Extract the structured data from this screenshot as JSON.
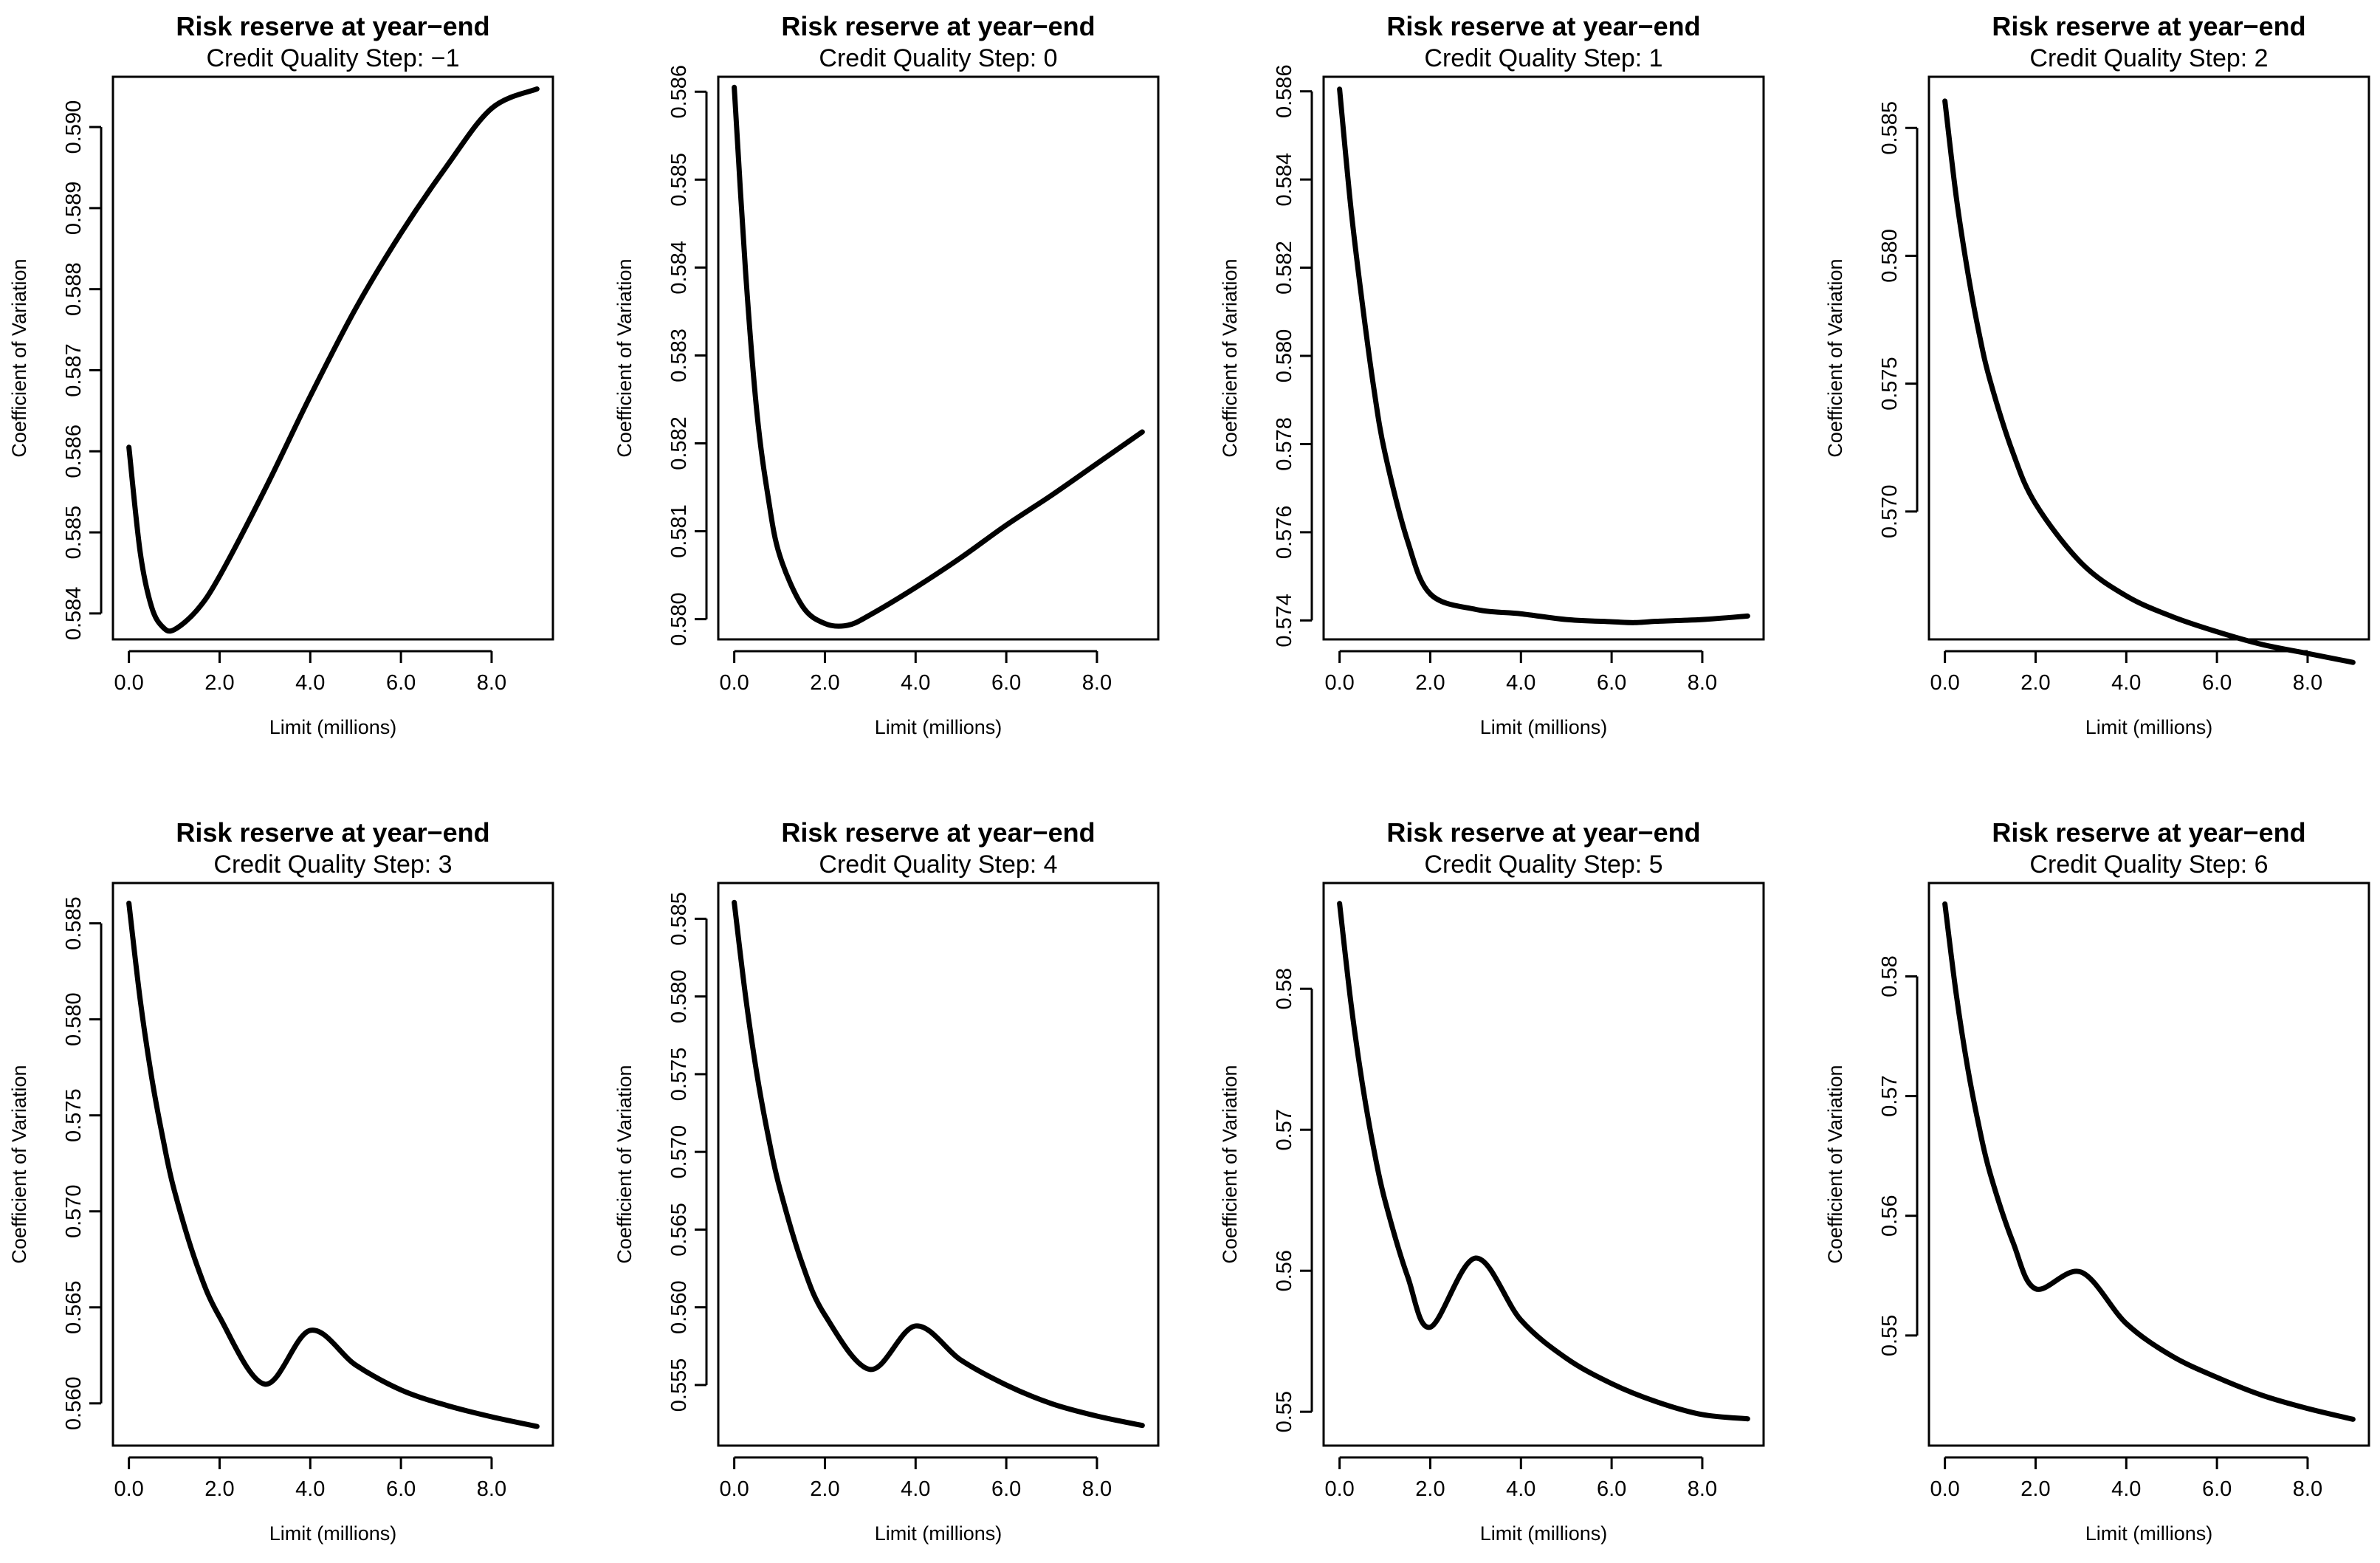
{
  "chart_data": [
    {
      "type": "line",
      "title": "Risk reserve at year−end",
      "subtitle": "Credit Quality Step: −1",
      "xlabel": "Limit (millions)",
      "ylabel": "Coefficient of Variation",
      "xlim": [
        0,
        9
      ],
      "ylim": [
        0.58368,
        0.59062
      ],
      "xticks": [
        "0.0",
        "2.0",
        "4.0",
        "6.0",
        "8.0"
      ],
      "yticks": [
        "0.584",
        "0.585",
        "0.586",
        "0.587",
        "0.588",
        "0.589",
        "0.590"
      ],
      "series": [
        {
          "name": "Coefficient of Variation",
          "x": [
            0,
            0.25,
            0.5,
            0.75,
            1.0,
            1.5,
            2.0,
            3.0,
            4.0,
            5.0,
            6.0,
            7.0,
            8.0,
            9.0
          ],
          "y": [
            0.58605,
            0.58475,
            0.58408,
            0.58383,
            0.5838,
            0.58404,
            0.58446,
            0.58553,
            0.58668,
            0.58776,
            0.58869,
            0.58951,
            0.59023,
            0.59047
          ]
        }
      ]
    },
    {
      "type": "line",
      "title": "Risk reserve at year−end",
      "subtitle": "Credit Quality Step: 0",
      "xlabel": "Limit (millions)",
      "ylabel": "Coefficient of Variation",
      "xlim": [
        0,
        9
      ],
      "ylim": [
        0.57977,
        0.58617
      ],
      "xticks": [
        "0.0",
        "2.0",
        "4.0",
        "6.0",
        "8.0"
      ],
      "yticks": [
        "0.580",
        "0.581",
        "0.582",
        "0.583",
        "0.584",
        "0.585",
        "0.586"
      ],
      "series": [
        {
          "name": "Coefficient of Variation",
          "x": [
            0,
            0.25,
            0.5,
            0.75,
            1.0,
            1.5,
            2.0,
            2.5,
            3.0,
            4.0,
            5.0,
            6.0,
            7.0,
            8.0,
            9.0
          ],
          "y": [
            0.58605,
            0.58395,
            0.58235,
            0.58138,
            0.58073,
            0.58015,
            0.57995,
            0.57993,
            0.58005,
            0.58036,
            0.5807,
            0.58107,
            0.58141,
            0.58177,
            0.58213
          ]
        }
      ]
    },
    {
      "type": "line",
      "title": "Risk reserve at year−end",
      "subtitle": "Credit Quality Step: 1",
      "xlabel": "Limit (millions)",
      "ylabel": "Coefficient of Variation",
      "xlim": [
        0,
        9
      ],
      "ylim": [
        0.57357,
        0.58633
      ],
      "xticks": [
        "0.0",
        "2.0",
        "4.0",
        "6.0",
        "8.0"
      ],
      "yticks": [
        "0.574",
        "0.576",
        "0.578",
        "0.580",
        "0.582",
        "0.584",
        "0.586"
      ],
      "series": [
        {
          "name": "Coefficient of Variation",
          "x": [
            0,
            0.25,
            0.5,
            0.75,
            1.0,
            1.5,
            2.0,
            3.0,
            4.0,
            5.0,
            6.0,
            6.5,
            7.0,
            8.0,
            9.0
          ],
          "y": [
            0.58605,
            0.58335,
            0.5812,
            0.5793,
            0.5778,
            0.5758,
            0.5746,
            0.57425,
            0.57415,
            0.57402,
            0.57397,
            0.57395,
            0.57398,
            0.57402,
            0.5741
          ]
        }
      ]
    },
    {
      "type": "line",
      "title": "Risk reserve at year−end",
      "subtitle": "Credit Quality Step: 2",
      "xlabel": "Limit (millions)",
      "ylabel": "Coefficient of Variation",
      "xlim": [
        0,
        9
      ],
      "ylim": [
        0.565,
        0.587
      ],
      "xticks": [
        "0.0",
        "2.0",
        "4.0",
        "6.0",
        "8.0"
      ],
      "yticks": [
        "0.570",
        "0.575",
        "0.580",
        "0.585"
      ],
      "series": [
        {
          "name": "Coefficient of Variation",
          "x": [
            0,
            0.25,
            0.5,
            0.75,
            1.0,
            1.5,
            2.0,
            3.0,
            4.0,
            5.0,
            6.0,
            7.0,
            8.0,
            9.0
          ],
          "y": [
            0.58605,
            0.5823,
            0.5794,
            0.577,
            0.5751,
            0.5723,
            0.5703,
            0.568,
            0.5667,
            0.5659,
            0.5653,
            0.5648,
            0.56445,
            0.5641
          ]
        }
      ]
    },
    {
      "type": "line",
      "title": "Risk reserve at year−end",
      "subtitle": "Credit Quality Step: 3",
      "xlabel": "Limit (millions)",
      "ylabel": "Coefficient of Variation",
      "xlim": [
        0,
        9
      ],
      "ylim": [
        0.5578,
        0.5871
      ],
      "xticks": [
        "0.0",
        "2.0",
        "4.0",
        "6.0",
        "8.0"
      ],
      "yticks": [
        "0.560",
        "0.565",
        "0.570",
        "0.575",
        "0.580",
        "0.585"
      ],
      "series": [
        {
          "name": "Coefficient of Variation",
          "x": [
            0,
            0.25,
            0.5,
            0.75,
            1.0,
            1.5,
            2.0,
            3.0,
            4.0,
            5.0,
            6.0,
            7.0,
            8.0,
            9.0
          ],
          "y": [
            0.58605,
            0.581,
            0.577,
            0.5738,
            0.5711,
            0.5672,
            0.5645,
            0.561,
            0.5638,
            0.562,
            0.5607,
            0.5599,
            0.5593,
            0.5588
          ]
        }
      ]
    },
    {
      "type": "line",
      "title": "Risk reserve at year−end",
      "subtitle": "Credit Quality Step: 4",
      "xlabel": "Limit (millions)",
      "ylabel": "Coefficient of Variation",
      "xlim": [
        0,
        9
      ],
      "ylim": [
        0.5511,
        0.5873
      ],
      "xticks": [
        "0.0",
        "2.0",
        "4.0",
        "6.0",
        "8.0"
      ],
      "yticks": [
        "0.555",
        "0.560",
        "0.565",
        "0.570",
        "0.575",
        "0.580",
        "0.585"
      ],
      "series": [
        {
          "name": "Coefficient of Variation",
          "x": [
            0,
            0.25,
            0.5,
            0.75,
            1.0,
            1.5,
            2.0,
            3.0,
            4.0,
            5.0,
            6.0,
            7.0,
            8.0,
            9.0
          ],
          "y": [
            0.58605,
            0.58,
            0.575,
            0.571,
            0.5677,
            0.5628,
            0.5595,
            0.556,
            0.5588,
            0.5566,
            0.555,
            0.5538,
            0.553,
            0.5524
          ]
        }
      ]
    },
    {
      "type": "line",
      "title": "Risk reserve at year−end",
      "subtitle": "Credit Quality Step: 5",
      "xlabel": "Limit (millions)",
      "ylabel": "Coefficient of Variation",
      "xlim": [
        0,
        9
      ],
      "ylim": [
        0.5476,
        0.5875
      ],
      "xticks": [
        "0.0",
        "2.0",
        "4.0",
        "6.0",
        "8.0"
      ],
      "yticks": [
        "0.55",
        "0.56",
        "0.57",
        "0.58"
      ],
      "series": [
        {
          "name": "Coefficient of Variation",
          "x": [
            0,
            0.25,
            0.5,
            0.75,
            1.0,
            1.5,
            2.0,
            3.0,
            4.0,
            5.0,
            6.0,
            7.0,
            8.0,
            9.0
          ],
          "y": [
            0.58605,
            0.579,
            0.5733,
            0.5687,
            0.565,
            0.5596,
            0.556,
            0.5609,
            0.5565,
            0.5538,
            0.552,
            0.5507,
            0.5498,
            0.5495
          ]
        }
      ]
    },
    {
      "type": "line",
      "title": "Risk reserve at year−end",
      "subtitle": "Credit Quality Step: 6",
      "xlabel": "Limit (millions)",
      "ylabel": "Coefficient of Variation",
      "xlim": [
        0,
        9
      ],
      "ylim": [
        0.5408,
        0.5878
      ],
      "xticks": [
        "0.0",
        "2.0",
        "4.0",
        "6.0",
        "8.0"
      ],
      "yticks": [
        "0.55",
        "0.56",
        "0.57",
        "0.58"
      ],
      "series": [
        {
          "name": "Coefficient of Variation",
          "x": [
            0,
            0.25,
            0.5,
            0.75,
            1.0,
            1.5,
            2.0,
            3.0,
            4.0,
            5.0,
            6.0,
            7.0,
            8.0,
            9.0
          ],
          "y": [
            0.58605,
            0.5785,
            0.5724,
            0.5675,
            0.5635,
            0.5578,
            0.5539,
            0.5553,
            0.551,
            0.5483,
            0.5465,
            0.545,
            0.5439,
            0.543
          ]
        }
      ]
    }
  ]
}
